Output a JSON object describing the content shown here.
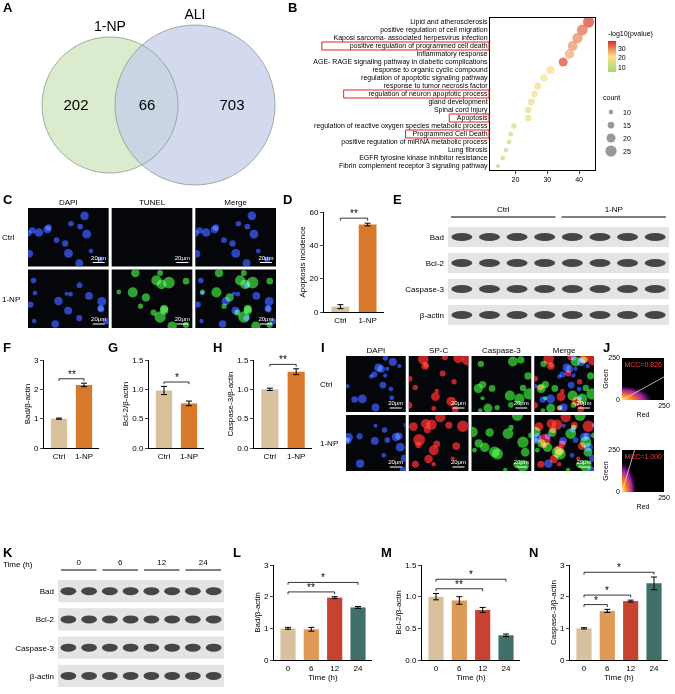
{
  "venn": {
    "panel": "A",
    "sets": [
      {
        "label": "1-NP",
        "color": "#cfe4bd"
      },
      {
        "label": "ALI",
        "color": "#c4cdea"
      }
    ],
    "only": [
      202,
      703
    ],
    "both": 66
  },
  "chart_data": [
    {
      "panel": "B",
      "type": "scatter",
      "categories": [
        "Lipid and atherosclerosis",
        "positive regulation of cell migration",
        "Kaposi sarcoma- associated herpesvirus infection",
        "positive regulation of programmed cell death",
        "inflammatory response",
        "AGE- RAGE signaling pathway in diabetic complications",
        "response to organic cyclic compound",
        "regulation of apoptotic signaling pathway",
        "response to tumor necrosis factor",
        "regulation of neuron apoptotic process",
        "gland development",
        "Spinal cord injury",
        "Apoptosis",
        "regulation of reactive oxygen species metabolic process",
        "Programmed Cell Death",
        "positive regulation of miRNA metabolic process",
        "Lung fibrosis",
        "EGFR tyrosine kinase inhibitor resistance",
        "Fibrin complement receptor 3 signaling pathway"
      ],
      "x": [
        43,
        41,
        39.5,
        38,
        37,
        35,
        31,
        29,
        27,
        26,
        25,
        24,
        24,
        19.5,
        18.5,
        18,
        17,
        16,
        14.5
      ],
      "sizes": [
        25,
        24,
        23,
        22,
        21,
        20,
        18,
        17,
        16,
        15,
        15,
        14,
        14,
        12,
        11,
        11,
        10,
        10,
        9
      ],
      "color_values": [
        37,
        33,
        30,
        29,
        27,
        36,
        22,
        21,
        19,
        20,
        17,
        17,
        18,
        13,
        12,
        11,
        10,
        9,
        6
      ],
      "colorbar": {
        "title": "-log10(pvalue)",
        "range": [
          5,
          38
        ],
        "ticks": [
          10,
          20,
          30
        ]
      },
      "size_legend": {
        "title": "count",
        "values": [
          10,
          15,
          20,
          25
        ]
      },
      "highlighted": [
        "positive regulation of programmed cell death",
        "regulation of neuron apoptotic process",
        "Apoptosis",
        "Programmed Cell Death"
      ],
      "xlim": [
        12,
        45
      ],
      "xticks": [
        20,
        30,
        40
      ],
      "grid": false
    },
    {
      "panel": "D",
      "type": "bar",
      "categories": [
        "Ctrl",
        "1-NP"
      ],
      "values": [
        3.2,
        52.5
      ],
      "errors": [
        1.2,
        0.8
      ],
      "colors": [
        "#d8c29d",
        "#d7782b"
      ],
      "y_label": "Apoptosis incidence",
      "ylim": [
        0,
        60
      ],
      "yticks": [
        0,
        20,
        40,
        60
      ],
      "grid": false,
      "annotations": [
        {
          "text": "**",
          "between": [
            "Ctrl",
            "1-NP"
          ]
        }
      ]
    },
    {
      "panel": "F",
      "type": "bar",
      "categories": [
        "Ctrl",
        "1-NP"
      ],
      "values": [
        1.0,
        2.15
      ],
      "errors": [
        0.02,
        0.06
      ],
      "colors": [
        "#d8c29d",
        "#d7782b"
      ],
      "y_label": "Bad/β-actin",
      "ylim": [
        0,
        3
      ],
      "yticks": [
        0,
        1,
        2,
        3
      ],
      "grid": false,
      "annotations": [
        {
          "text": "**",
          "between": [
            "Ctrl",
            "1-NP"
          ]
        }
      ]
    },
    {
      "panel": "G",
      "type": "bar",
      "categories": [
        "Ctrl",
        "1-NP"
      ],
      "values": [
        0.98,
        0.76
      ],
      "errors": [
        0.07,
        0.04
      ],
      "colors": [
        "#d8c29d",
        "#d7782b"
      ],
      "y_label": "Bcl-2/β-actin",
      "ylim": [
        0,
        1.5
      ],
      "yticks": [
        {
          "value": 0,
          "label": "0.0"
        },
        0.5,
        {
          "value": 1,
          "label": "1.0"
        },
        1.5
      ],
      "grid": false,
      "annotations": [
        {
          "text": "*",
          "between": [
            "Ctrl",
            "1-NP"
          ]
        }
      ]
    },
    {
      "panel": "H",
      "type": "bar",
      "categories": [
        "Ctrl",
        "1-NP"
      ],
      "values": [
        1.0,
        1.3
      ],
      "errors": [
        0.02,
        0.05
      ],
      "colors": [
        "#d8c29d",
        "#d7782b"
      ],
      "y_label": "Caspase-3/β-actin",
      "ylim": [
        0,
        1.5
      ],
      "yticks": [
        {
          "value": 0,
          "label": "0.0"
        },
        0.5,
        {
          "value": 1,
          "label": "1.0"
        },
        1.5
      ],
      "grid": false,
      "annotations": [
        {
          "text": "**",
          "between": [
            "Ctrl",
            "1-NP"
          ]
        }
      ]
    },
    {
      "panel": "L",
      "type": "bar",
      "categories": [
        "0",
        "6",
        "12",
        "24"
      ],
      "values": [
        1.0,
        0.97,
        1.97,
        1.66
      ],
      "errors": [
        0.03,
        0.06,
        0.03,
        0.03
      ],
      "colors": [
        "#d8c29d",
        "#e09a57",
        "#c8432f",
        "#3f6f69"
      ],
      "x_label": "Time (h)",
      "y_label": "Bad/β-actin",
      "ylim": [
        0,
        3
      ],
      "yticks": [
        0,
        1,
        2,
        3
      ],
      "grid": false,
      "annotations": [
        {
          "text": "**",
          "between": [
            "0",
            "12"
          ]
        },
        {
          "text": "*",
          "between": [
            "0",
            "24"
          ]
        }
      ]
    },
    {
      "panel": "M",
      "type": "bar",
      "categories": [
        "0",
        "6",
        "12",
        "24"
      ],
      "values": [
        1.0,
        0.94,
        0.79,
        0.39
      ],
      "errors": [
        0.05,
        0.06,
        0.04,
        0.02
      ],
      "colors": [
        "#d8c29d",
        "#e09a57",
        "#c8432f",
        "#3f6f69"
      ],
      "x_label": "Time (h)",
      "y_label": "Bcl-2/β-actin",
      "ylim": [
        0,
        1.5
      ],
      "yticks": [
        {
          "value": 0,
          "label": "0.0"
        },
        0.5,
        {
          "value": 1,
          "label": "1.0"
        },
        1.5
      ],
      "grid": false,
      "annotations": [
        {
          "text": "**",
          "between": [
            "0",
            "12"
          ]
        },
        {
          "text": "*",
          "between": [
            "0",
            "24"
          ]
        }
      ]
    },
    {
      "panel": "N",
      "type": "bar",
      "categories": [
        "0",
        "6",
        "12",
        "24"
      ],
      "values": [
        1.0,
        1.55,
        1.86,
        2.42
      ],
      "errors": [
        0.02,
        0.05,
        0.03,
        0.2
      ],
      "colors": [
        "#d8c29d",
        "#e09a57",
        "#c8432f",
        "#3f6f69"
      ],
      "x_label": "Time (h)",
      "y_label": "Caspase-3/β-actin",
      "ylim": [
        0,
        3
      ],
      "yticks": [
        0,
        1,
        2,
        3
      ],
      "grid": false,
      "annotations": [
        {
          "text": "*",
          "between": [
            "0",
            "6"
          ]
        },
        {
          "text": "*",
          "between": [
            "0",
            "12"
          ]
        },
        {
          "text": "*",
          "between": [
            "0",
            "24"
          ]
        }
      ]
    }
  ],
  "images": [
    {
      "panel": "C",
      "columns": [
        {
          "name": "DAPI",
          "color": "#3a5cff"
        },
        {
          "name": "TUNEL",
          "color": "#3fd43f"
        },
        {
          "name": "Merge",
          "merge": true
        }
      ],
      "rows": [
        {
          "label": "Ctrl",
          "stained": [
            "DAPI"
          ]
        },
        {
          "label": "1-NP",
          "stained": [
            "DAPI",
            "TUNEL"
          ]
        }
      ],
      "scale_bar": "20μm"
    },
    {
      "panel": "I",
      "columns": [
        {
          "name": "DAPI",
          "color": "#3a5cff"
        },
        {
          "name": "SP-C",
          "color": "#ff2d2d"
        },
        {
          "name": "Caspase-3",
          "color": "#36d636"
        },
        {
          "name": "Merge",
          "merge": true
        }
      ],
      "rows": [
        {
          "label": "Ctrl",
          "stained": [
            "DAPI",
            "SP-C",
            "Caspase-3"
          ]
        },
        {
          "label": "1-NP",
          "stained": [
            "DAPI",
            "SP-C",
            "Caspase-3"
          ]
        }
      ],
      "scale_bar": "20μm"
    }
  ],
  "blots": [
    {
      "panel": "E",
      "groups": [
        {
          "label": "Ctrl",
          "lanes": 4
        },
        {
          "label": "1-NP",
          "lanes": 4
        }
      ],
      "rows": [
        "Bad",
        "Bcl-2",
        "Caspase-3",
        "β-actin"
      ]
    },
    {
      "panel": "K",
      "header": "Time (h)",
      "groups": [
        {
          "label": "0",
          "lanes": 2
        },
        {
          "label": "6",
          "lanes": 2
        },
        {
          "label": "12",
          "lanes": 2
        },
        {
          "label": "24",
          "lanes": 2
        }
      ],
      "rows": [
        "Bad",
        "Bcl-2",
        "Caspase-3",
        "β-actin"
      ]
    }
  ],
  "colocalization": {
    "panel": "J",
    "x_label": "Red",
    "y_label": "Green",
    "xlim": [
      0,
      250
    ],
    "ylim": [
      0,
      250
    ],
    "xticks": [
      250
    ],
    "yticks": [
      0,
      250
    ],
    "plots": [
      {
        "annotation": "MCC=0.826"
      },
      {
        "annotation": "MCC=1.000"
      }
    ]
  }
}
